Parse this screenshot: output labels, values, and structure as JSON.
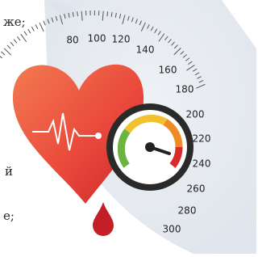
{
  "text_fragments": [
    "же;",
    "й",
    "е;"
  ],
  "dial_labels": [
    "80",
    "100",
    "120",
    "140",
    "160",
    "180",
    "200",
    "220",
    "240",
    "260",
    "280",
    "300"
  ]
}
